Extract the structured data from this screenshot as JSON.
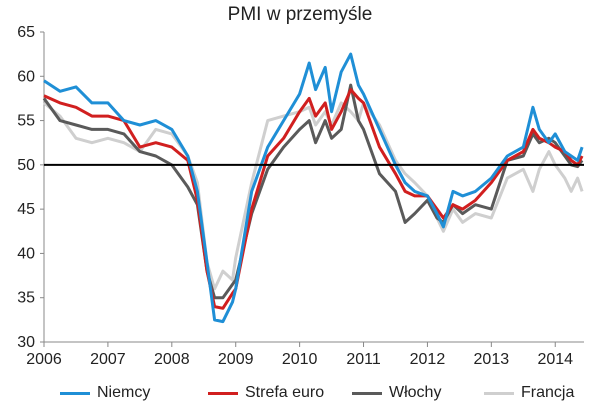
{
  "chart_data": {
    "type": "line",
    "title": "PMI w przemyśle",
    "xlabel": "",
    "ylabel": "",
    "xlim": [
      2006,
      2014.45
    ],
    "ylim": [
      30,
      65
    ],
    "y_ticks": [
      30,
      35,
      40,
      45,
      50,
      55,
      60,
      65
    ],
    "x_ticks": [
      2006,
      2007,
      2008,
      2009,
      2010,
      2011,
      2012,
      2013,
      2014
    ],
    "reference_line": 50,
    "grid": false,
    "legend_position": "bottom",
    "series": [
      {
        "name": "Niemcy",
        "color": "#1f8fd6",
        "points": [
          [
            2006.0,
            59.5
          ],
          [
            2006.25,
            58.3
          ],
          [
            2006.5,
            58.8
          ],
          [
            2006.75,
            57.0
          ],
          [
            2007.0,
            57.0
          ],
          [
            2007.25,
            55.0
          ],
          [
            2007.5,
            54.5
          ],
          [
            2007.75,
            55.0
          ],
          [
            2008.0,
            54.0
          ],
          [
            2008.25,
            51.0
          ],
          [
            2008.4,
            47.0
          ],
          [
            2008.55,
            39.0
          ],
          [
            2008.67,
            32.5
          ],
          [
            2008.8,
            32.3
          ],
          [
            2008.95,
            34.5
          ],
          [
            2009.0,
            36.0
          ],
          [
            2009.25,
            47.0
          ],
          [
            2009.5,
            52.0
          ],
          [
            2009.75,
            55.0
          ],
          [
            2010.0,
            58.0
          ],
          [
            2010.15,
            61.5
          ],
          [
            2010.25,
            58.5
          ],
          [
            2010.4,
            61.0
          ],
          [
            2010.5,
            56.0
          ],
          [
            2010.65,
            60.5
          ],
          [
            2010.8,
            62.5
          ],
          [
            2010.92,
            59.0
          ],
          [
            2011.0,
            58.0
          ],
          [
            2011.25,
            54.0
          ],
          [
            2011.5,
            50.0
          ],
          [
            2011.65,
            48.0
          ],
          [
            2011.8,
            47.0
          ],
          [
            2012.0,
            46.5
          ],
          [
            2012.15,
            44.5
          ],
          [
            2012.25,
            43.0
          ],
          [
            2012.4,
            47.0
          ],
          [
            2012.55,
            46.5
          ],
          [
            2012.75,
            47.0
          ],
          [
            2013.0,
            48.5
          ],
          [
            2013.25,
            51.0
          ],
          [
            2013.5,
            52.0
          ],
          [
            2013.65,
            56.5
          ],
          [
            2013.75,
            54.0
          ],
          [
            2013.9,
            52.5
          ],
          [
            2014.0,
            53.5
          ],
          [
            2014.15,
            51.5
          ],
          [
            2014.25,
            51.0
          ],
          [
            2014.35,
            50.5
          ],
          [
            2014.42,
            52.0
          ]
        ]
      },
      {
        "name": "Strefa euro",
        "color": "#d11f1f",
        "points": [
          [
            2006.0,
            57.8
          ],
          [
            2006.25,
            57.0
          ],
          [
            2006.5,
            56.5
          ],
          [
            2006.75,
            55.5
          ],
          [
            2007.0,
            55.5
          ],
          [
            2007.25,
            55.0
          ],
          [
            2007.5,
            52.0
          ],
          [
            2007.75,
            52.5
          ],
          [
            2008.0,
            52.0
          ],
          [
            2008.25,
            50.5
          ],
          [
            2008.4,
            46.0
          ],
          [
            2008.55,
            38.0
          ],
          [
            2008.67,
            34.0
          ],
          [
            2008.8,
            33.8
          ],
          [
            2008.95,
            35.5
          ],
          [
            2009.0,
            36.0
          ],
          [
            2009.25,
            45.0
          ],
          [
            2009.5,
            51.0
          ],
          [
            2009.75,
            53.0
          ],
          [
            2010.0,
            56.0
          ],
          [
            2010.15,
            57.5
          ],
          [
            2010.25,
            55.5
          ],
          [
            2010.4,
            57.0
          ],
          [
            2010.5,
            54.0
          ],
          [
            2010.65,
            56.0
          ],
          [
            2010.8,
            58.5
          ],
          [
            2010.92,
            57.5
          ],
          [
            2011.0,
            57.0
          ],
          [
            2011.25,
            52.0
          ],
          [
            2011.5,
            49.0
          ],
          [
            2011.65,
            47.0
          ],
          [
            2011.8,
            46.5
          ],
          [
            2012.0,
            46.5
          ],
          [
            2012.15,
            45.0
          ],
          [
            2012.25,
            44.0
          ],
          [
            2012.4,
            45.5
          ],
          [
            2012.55,
            45.0
          ],
          [
            2012.75,
            46.0
          ],
          [
            2013.0,
            48.0
          ],
          [
            2013.25,
            50.5
          ],
          [
            2013.5,
            51.5
          ],
          [
            2013.65,
            54.0
          ],
          [
            2013.75,
            53.0
          ],
          [
            2013.9,
            52.5
          ],
          [
            2014.0,
            52.0
          ],
          [
            2014.15,
            51.5
          ],
          [
            2014.25,
            50.5
          ],
          [
            2014.35,
            50.0
          ],
          [
            2014.42,
            51.0
          ]
        ]
      },
      {
        "name": "Włochy",
        "color": "#5a5a5a",
        "points": [
          [
            2006.0,
            57.5
          ],
          [
            2006.25,
            55.0
          ],
          [
            2006.5,
            54.5
          ],
          [
            2006.75,
            54.0
          ],
          [
            2007.0,
            54.0
          ],
          [
            2007.25,
            53.5
          ],
          [
            2007.5,
            51.5
          ],
          [
            2007.75,
            51.0
          ],
          [
            2008.0,
            50.0
          ],
          [
            2008.25,
            47.5
          ],
          [
            2008.4,
            45.5
          ],
          [
            2008.55,
            38.0
          ],
          [
            2008.67,
            35.0
          ],
          [
            2008.8,
            35.0
          ],
          [
            2008.95,
            36.5
          ],
          [
            2009.0,
            37.0
          ],
          [
            2009.25,
            44.5
          ],
          [
            2009.5,
            49.5
          ],
          [
            2009.75,
            52.0
          ],
          [
            2010.0,
            54.0
          ],
          [
            2010.15,
            55.0
          ],
          [
            2010.25,
            52.5
          ],
          [
            2010.4,
            55.0
          ],
          [
            2010.5,
            53.0
          ],
          [
            2010.65,
            54.0
          ],
          [
            2010.8,
            59.0
          ],
          [
            2010.92,
            55.0
          ],
          [
            2011.0,
            54.0
          ],
          [
            2011.25,
            49.0
          ],
          [
            2011.5,
            47.0
          ],
          [
            2011.65,
            43.5
          ],
          [
            2011.8,
            44.5
          ],
          [
            2012.0,
            46.0
          ],
          [
            2012.15,
            44.0
          ],
          [
            2012.25,
            43.5
          ],
          [
            2012.4,
            45.5
          ],
          [
            2012.55,
            44.5
          ],
          [
            2012.75,
            45.5
          ],
          [
            2013.0,
            45.0
          ],
          [
            2013.25,
            50.5
          ],
          [
            2013.5,
            51.0
          ],
          [
            2013.65,
            53.5
          ],
          [
            2013.75,
            52.5
          ],
          [
            2013.9,
            53.0
          ],
          [
            2014.0,
            52.5
          ],
          [
            2014.15,
            51.0
          ],
          [
            2014.25,
            50.0
          ],
          [
            2014.35,
            49.8
          ],
          [
            2014.42,
            50.5
          ]
        ]
      },
      {
        "name": "Francja",
        "color": "#cfcfcf",
        "points": [
          [
            2006.0,
            57.0
          ],
          [
            2006.25,
            55.5
          ],
          [
            2006.5,
            53.0
          ],
          [
            2006.75,
            52.5
          ],
          [
            2007.0,
            53.0
          ],
          [
            2007.25,
            52.5
          ],
          [
            2007.5,
            51.5
          ],
          [
            2007.75,
            54.0
          ],
          [
            2008.0,
            53.5
          ],
          [
            2008.25,
            51.0
          ],
          [
            2008.4,
            48.0
          ],
          [
            2008.55,
            39.0
          ],
          [
            2008.67,
            36.0
          ],
          [
            2008.8,
            38.0
          ],
          [
            2008.95,
            37.0
          ],
          [
            2009.0,
            39.5
          ],
          [
            2009.25,
            48.0
          ],
          [
            2009.5,
            55.0
          ],
          [
            2009.75,
            55.5
          ],
          [
            2010.0,
            56.0
          ],
          [
            2010.15,
            56.5
          ],
          [
            2010.25,
            54.5
          ],
          [
            2010.4,
            56.0
          ],
          [
            2010.5,
            54.5
          ],
          [
            2010.65,
            57.0
          ],
          [
            2010.8,
            56.0
          ],
          [
            2010.92,
            55.0
          ],
          [
            2011.0,
            57.0
          ],
          [
            2011.25,
            54.5
          ],
          [
            2011.5,
            50.5
          ],
          [
            2011.65,
            49.0
          ],
          [
            2011.8,
            48.0
          ],
          [
            2012.0,
            46.5
          ],
          [
            2012.15,
            44.0
          ],
          [
            2012.25,
            42.5
          ],
          [
            2012.4,
            45.0
          ],
          [
            2012.55,
            43.5
          ],
          [
            2012.75,
            44.5
          ],
          [
            2013.0,
            44.0
          ],
          [
            2013.25,
            48.5
          ],
          [
            2013.5,
            49.5
          ],
          [
            2013.65,
            47.0
          ],
          [
            2013.75,
            49.5
          ],
          [
            2013.9,
            51.5
          ],
          [
            2014.0,
            50.0
          ],
          [
            2014.15,
            48.5
          ],
          [
            2014.25,
            47.0
          ],
          [
            2014.35,
            48.5
          ],
          [
            2014.42,
            47.0
          ]
        ]
      }
    ]
  }
}
